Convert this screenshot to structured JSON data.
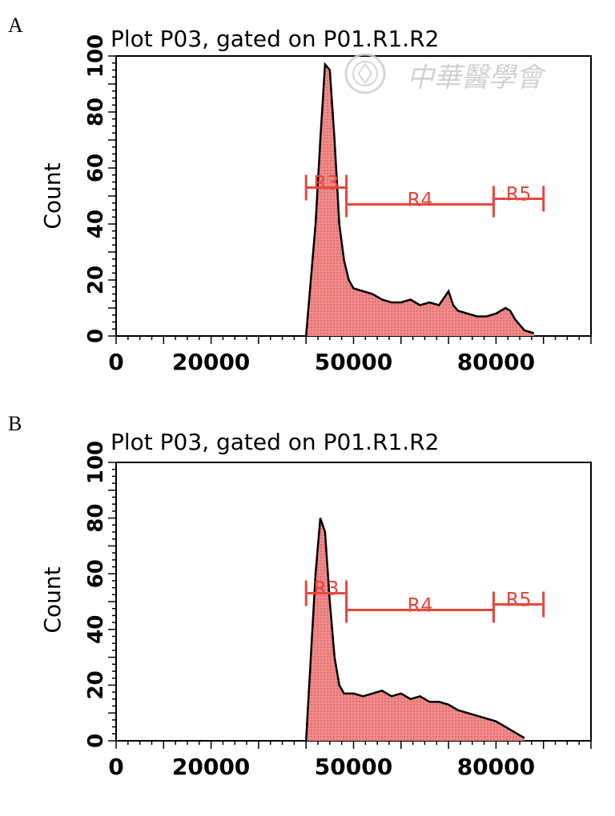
{
  "chart_data": [
    {
      "panel": "A",
      "type": "area",
      "title": "Plot P03, gated on P01.R1.R2",
      "xlabel": "",
      "ylabel": "Count",
      "xlim": [
        0,
        100000
      ],
      "ylim": [
        0,
        100
      ],
      "yticks": [
        "0",
        "20",
        "40",
        "60",
        "80",
        "100"
      ],
      "xticks": [
        "0",
        "20000",
        "50000",
        "80000"
      ],
      "grid": false,
      "fill_color": "#f08a8a",
      "line_color": "#000000",
      "region_color": "#e8473c",
      "series": [
        {
          "x": [
            40000,
            41000,
            42000,
            43000,
            44000,
            45000,
            46000,
            47000,
            48000,
            49000,
            50000,
            52000,
            54000,
            56000,
            58000,
            60000,
            62000,
            64000,
            66000,
            68000,
            70000,
            71000,
            72000,
            74000,
            76000,
            78000,
            80000,
            82000,
            83000,
            84000,
            86000,
            88000
          ],
          "y": [
            0,
            20,
            40,
            70,
            97,
            95,
            70,
            40,
            27,
            20,
            17,
            16,
            15,
            13,
            12,
            12,
            13,
            11,
            12,
            11,
            16,
            11,
            9,
            8,
            7,
            7,
            8,
            10,
            9,
            6,
            2,
            1
          ]
        }
      ],
      "regions": [
        {
          "label": "R3",
          "x0": 40000,
          "x1": 48500,
          "y": 53
        },
        {
          "label": "R4",
          "x0": 48500,
          "x1": 79500,
          "y": 47
        },
        {
          "label": "R5",
          "x0": 79500,
          "x1": 90000,
          "y": 49
        }
      ]
    },
    {
      "panel": "B",
      "type": "area",
      "title": "Plot P03, gated on P01.R1.R2",
      "xlabel": "",
      "ylabel": "Count",
      "xlim": [
        0,
        100000
      ],
      "ylim": [
        0,
        100
      ],
      "yticks": [
        "0",
        "20",
        "40",
        "60",
        "80",
        "100"
      ],
      "xticks": [
        "0",
        "20000",
        "50000",
        "80000"
      ],
      "grid": false,
      "fill_color": "#f08a8a",
      "line_color": "#000000",
      "region_color": "#e8473c",
      "series": [
        {
          "x": [
            40000,
            41000,
            42000,
            43000,
            44000,
            45000,
            46000,
            47000,
            48000,
            50000,
            52000,
            54000,
            56000,
            58000,
            60000,
            62000,
            64000,
            66000,
            68000,
            70000,
            72000,
            74000,
            76000,
            78000,
            80000,
            82000,
            84000,
            86000
          ],
          "y": [
            0,
            30,
            60,
            80,
            75,
            50,
            30,
            20,
            17,
            17,
            16,
            17,
            18,
            16,
            17,
            15,
            16,
            14,
            14,
            13,
            11,
            10,
            9,
            8,
            7,
            5,
            3,
            1
          ]
        }
      ],
      "regions": [
        {
          "label": "R3",
          "x0": 40000,
          "x1": 48500,
          "y": 53
        },
        {
          "label": "R4",
          "x0": 48500,
          "x1": 79500,
          "y": 47
        },
        {
          "label": "R5",
          "x0": 79500,
          "x1": 90000,
          "y": 49
        }
      ]
    }
  ],
  "watermark": {
    "text": "中華醫學會"
  }
}
